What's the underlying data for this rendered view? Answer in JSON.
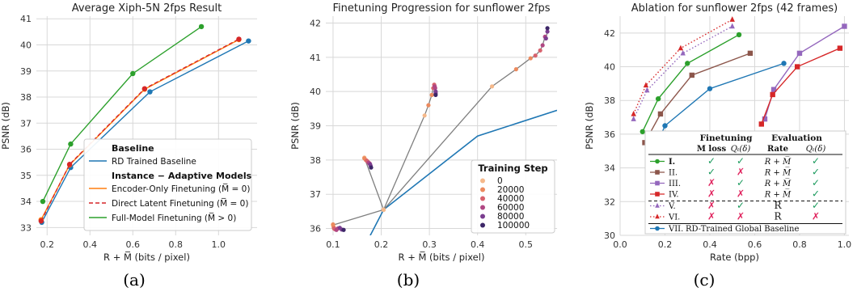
{
  "captions": [
    "(a)",
    "(b)",
    "(c)"
  ],
  "chart_data": [
    {
      "type": "line",
      "title": "Average Xiph-5N 2fps Result",
      "xlabel": "R + M̅ (bits / pixel)",
      "ylabel": "PSNR (dB)",
      "xlim": [
        0.15,
        1.18
      ],
      "ylim": [
        32.7,
        41.1
      ],
      "xticks": [
        0.2,
        0.4,
        0.6,
        0.8,
        1.0
      ],
      "xtick_labels": [
        "0.2",
        "0.4",
        "0.6",
        "0.8",
        "1.0"
      ],
      "yticks": [
        33,
        34,
        35,
        36,
        37,
        38,
        39,
        40,
        41
      ],
      "ytick_labels": [
        "33",
        "34",
        "35",
        "36",
        "37",
        "38",
        "39",
        "40",
        "41"
      ],
      "grid": true,
      "legend": {
        "placement": "lower-right",
        "headers": [
          "Baseline",
          "Instance − Adaptive Models"
        ],
        "entries": [
          "RD Trained Baseline",
          "Encoder-Only Finetuning (M̅ = 0)",
          "Direct Latent Finetuning (M̅ = 0)",
          "Full-Model Finetuning (M̅ > 0)"
        ]
      },
      "series": [
        {
          "name": "RD Trained Baseline",
          "color": "#1f77b4",
          "dash": "solid",
          "x": [
            0.175,
            0.31,
            0.68,
            1.14
          ],
          "y": [
            33.2,
            35.3,
            38.2,
            40.15
          ]
        },
        {
          "name": "Encoder-Only Finetuning (M̅ = 0)",
          "color": "#ff7f0e",
          "dash": "solid",
          "x": [
            0.172,
            0.305,
            0.655,
            1.095
          ],
          "y": [
            33.3,
            35.4,
            38.3,
            40.2
          ]
        },
        {
          "name": "Direct Latent Finetuning (M̅ = 0)",
          "color": "#d62728",
          "dash": "dashed",
          "x": [
            0.172,
            0.305,
            0.655,
            1.095
          ],
          "y": [
            33.25,
            35.42,
            38.32,
            40.22
          ]
        },
        {
          "name": "Full-Model Finetuning (M̅ > 0)",
          "color": "#2ca02c",
          "dash": "solid",
          "x": [
            0.18,
            0.31,
            0.6,
            0.92
          ],
          "y": [
            34.0,
            36.2,
            38.9,
            40.7
          ]
        }
      ]
    },
    {
      "type": "scatter",
      "title": "Finetuning Progression for sunflower 2fps",
      "xlabel": "R + M̅ (bits / pixel)",
      "ylabel": "PSNR (dB)",
      "xlim": [
        0.085,
        0.565
      ],
      "ylim": [
        35.8,
        42.2
      ],
      "xticks": [
        0.1,
        0.2,
        0.3,
        0.4,
        0.5
      ],
      "xtick_labels": [
        "0.1",
        "0.2",
        "0.3",
        "0.4",
        "0.5"
      ],
      "yticks": [
        36,
        37,
        38,
        39,
        40,
        41,
        42
      ],
      "ytick_labels": [
        "36",
        "37",
        "38",
        "39",
        "40",
        "41",
        "42"
      ],
      "grid": true,
      "legend": {
        "placement": "lower-right",
        "title": "Training Step",
        "entries": [
          "0",
          "20000",
          "40000",
          "60000",
          "80000",
          "100000"
        ],
        "colors": [
          "#f5b88a",
          "#ec8a5e",
          "#d8626d",
          "#b04783",
          "#7a3d8f",
          "#3d2768"
        ]
      },
      "baseline": {
        "color": "#1f77b4",
        "x": [
          0.17,
          0.205,
          0.4,
          0.565
        ],
        "y": [
          35.6,
          36.55,
          38.7,
          39.45
        ]
      },
      "trajectories": [
        {
          "x": [
            0.205,
            0.1,
            0.1,
            0.101,
            0.102,
            0.104,
            0.107,
            0.11,
            0.114,
            0.118,
            0.122
          ],
          "y": [
            36.55,
            36.1,
            36.12,
            36.05,
            36.0,
            35.98,
            35.96,
            36.0,
            36.02,
            35.97,
            35.96
          ]
        },
        {
          "x": [
            0.205,
            0.165,
            0.165,
            0.168,
            0.17,
            0.172,
            0.174,
            0.176,
            0.177,
            0.178,
            0.179
          ],
          "y": [
            36.55,
            38.07,
            38.05,
            38.0,
            37.98,
            37.95,
            37.92,
            37.9,
            37.87,
            37.83,
            37.78
          ]
        },
        {
          "x": [
            0.205,
            0.29,
            0.298,
            0.305,
            0.308,
            0.31,
            0.311,
            0.312,
            0.313,
            0.313,
            0.313
          ],
          "y": [
            36.55,
            39.3,
            39.6,
            39.9,
            40.1,
            40.2,
            40.15,
            40.1,
            40.0,
            39.95,
            39.9
          ]
        },
        {
          "x": [
            0.205,
            0.43,
            0.48,
            0.51,
            0.52,
            0.53,
            0.535,
            0.54,
            0.542,
            0.545,
            0.545
          ],
          "y": [
            36.55,
            40.15,
            40.65,
            40.97,
            41.05,
            41.2,
            41.35,
            41.6,
            41.55,
            41.75,
            41.85
          ]
        }
      ]
    },
    {
      "type": "line",
      "title": "Ablation for sunflower 2fps (42 frames)",
      "xlabel": "Rate (bpp)",
      "ylabel": "PSNR (dB)",
      "xlim": [
        0.0,
        1.02
      ],
      "ylim": [
        30.0,
        43.0
      ],
      "xticks": [
        0.0,
        0.2,
        0.4,
        0.6,
        0.8,
        1.0
      ],
      "xtick_labels": [
        "0.0",
        "0.2",
        "0.4",
        "0.6",
        "0.8",
        "1.0"
      ],
      "yticks": [
        30,
        32,
        34,
        36,
        38,
        40,
        42
      ],
      "ytick_labels": [
        "30",
        "32",
        "34",
        "36",
        "38",
        "40",
        "42"
      ],
      "grid": true,
      "table": {
        "header_top": [
          "Finetuning",
          "Evaluation"
        ],
        "header_sub": [
          "M loss",
          "Qₜ(δ)",
          "Rate",
          "Qₜ(δ)"
        ],
        "rows": [
          {
            "label": "I.",
            "marker": "circle",
            "color": "#2ca02c",
            "dash": "solid",
            "bold": true,
            "cells": [
              "✓",
              "✓",
              "R + M̅",
              "✓"
            ]
          },
          {
            "label": "II.",
            "marker": "square",
            "color": "#8c564b",
            "dash": "solid",
            "bold": false,
            "cells": [
              "✓",
              "✗",
              "R + M̅",
              "✓"
            ]
          },
          {
            "label": "III.",
            "marker": "square",
            "color": "#9467bd",
            "dash": "solid",
            "bold": false,
            "cells": [
              "✗",
              "✓",
              "R + M̅",
              "✓"
            ]
          },
          {
            "label": "IV.",
            "marker": "square",
            "color": "#d62728",
            "dash": "solid",
            "bold": false,
            "cells": [
              "✗",
              "✗",
              "R + M̅",
              "✓"
            ]
          },
          {
            "label": "V.",
            "marker": "triangle",
            "color": "#9467bd",
            "dash": "dotted",
            "bold": false,
            "cells": [
              "✗",
              "✓",
              "R",
              "✓"
            ]
          },
          {
            "label": "VI.",
            "marker": "triangle",
            "color": "#d62728",
            "dash": "dotted",
            "bold": false,
            "cells": [
              "✗",
              "✗",
              "R",
              "✗"
            ]
          },
          {
            "label": "VII.",
            "marker": "circle",
            "color": "#1f77b4",
            "dash": "solid",
            "bold": false,
            "cells": [
              "RD-Trained Global Baseline"
            ]
          }
        ]
      },
      "series": [
        {
          "name": "I.",
          "color": "#2ca02c",
          "dash": "solid",
          "marker": "circle",
          "x": [
            0.1,
            0.17,
            0.3,
            0.53
          ],
          "y": [
            36.15,
            38.1,
            40.2,
            41.9
          ]
        },
        {
          "name": "II.",
          "color": "#8c564b",
          "dash": "solid",
          "marker": "square",
          "x": [
            0.11,
            0.18,
            0.32,
            0.58
          ],
          "y": [
            35.5,
            37.2,
            39.5,
            40.8
          ]
        },
        {
          "name": "III.",
          "color": "#9467bd",
          "dash": "solid",
          "marker": "square",
          "x": [
            0.645,
            0.685,
            0.8,
            1.0
          ],
          "y": [
            36.9,
            38.65,
            40.8,
            42.4
          ]
        },
        {
          "name": "IV.",
          "color": "#d62728",
          "dash": "solid",
          "marker": "square",
          "x": [
            0.63,
            0.68,
            0.79,
            0.98
          ],
          "y": [
            36.6,
            38.35,
            40.0,
            41.1
          ]
        },
        {
          "name": "V.",
          "color": "#9467bd",
          "dash": "dotted",
          "marker": "triangle",
          "x": [
            0.06,
            0.12,
            0.28,
            0.5
          ],
          "y": [
            36.9,
            38.6,
            40.8,
            42.4
          ]
        },
        {
          "name": "VI.",
          "color": "#d62728",
          "dash": "dotted",
          "marker": "triangle",
          "x": [
            0.06,
            0.115,
            0.27,
            0.5
          ],
          "y": [
            37.2,
            38.9,
            41.1,
            42.8
          ]
        },
        {
          "name": "VII.",
          "color": "#1f77b4",
          "dash": "solid",
          "marker": "circle",
          "x": [
            0.13,
            0.2,
            0.4,
            0.73
          ],
          "y": [
            34.4,
            36.5,
            38.7,
            40.2
          ]
        }
      ]
    }
  ]
}
